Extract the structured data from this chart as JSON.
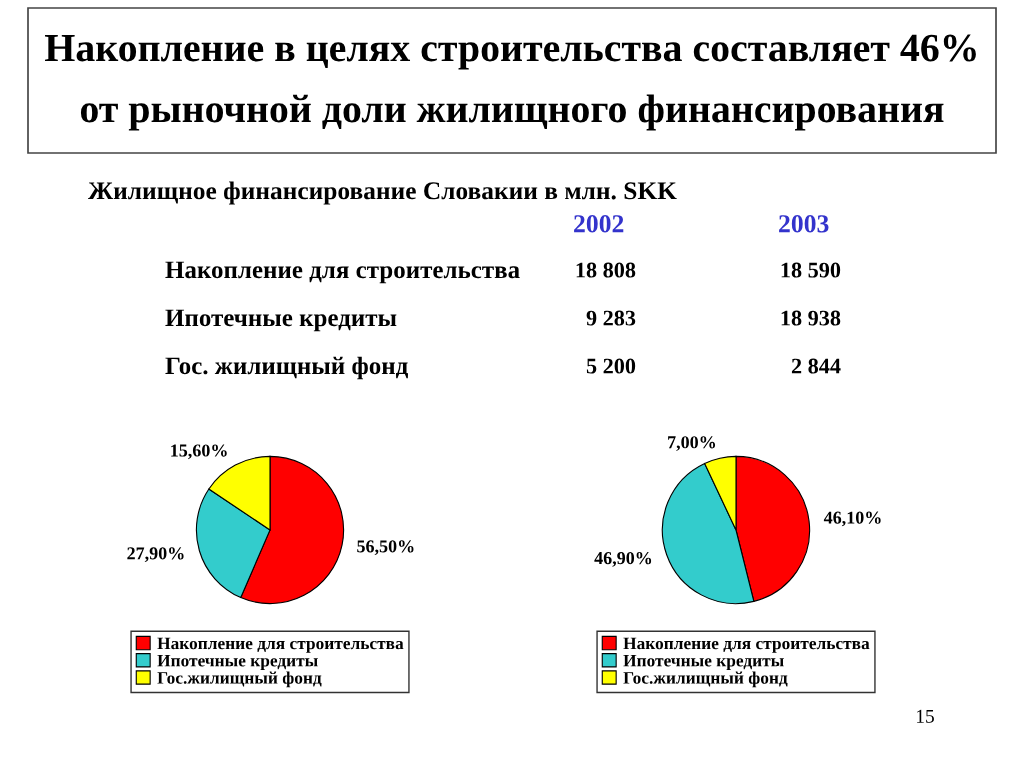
{
  "chart_data": [
    {
      "type": "other",
      "title": "Накопление в целях строительства составляет 46%\nот рыночной доли жилищного финансирования",
      "subtitle": "Жилищное финансирование Словакии в млн. SKK",
      "categories": [
        "Накопление для строительства",
        "Ипотечные кредиты",
        "Гос. жилищный фонд"
      ],
      "series": [
        {
          "name": "2002",
          "color": "#3333cc",
          "values": [
            18808,
            9283,
            5200
          ]
        },
        {
          "name": "2003",
          "color": "#3333cc",
          "values": [
            18590,
            18938,
            2844
          ]
        }
      ],
      "data_labels": true,
      "annotations": [
        "15"
      ]
    },
    {
      "type": "pie",
      "categories": [
        "Накопление для строительства",
        "Ипотечные кредиты",
        "Гос.жилищный фонд"
      ],
      "values": [
        56.5,
        27.9,
        15.6
      ],
      "colors": [
        "#ff0000",
        "#33cccc",
        "#ffff00"
      ],
      "value_labels": [
        "56,50%",
        "27,90%",
        "15,60%"
      ],
      "legend": "bottom"
    },
    {
      "type": "pie",
      "categories": [
        "Накопление для строительства",
        "Ипотечные кредиты",
        "Гос.жилищный фонд"
      ],
      "values": [
        46.1,
        46.9,
        7.0
      ],
      "colors": [
        "#ff0000",
        "#33cccc",
        "#ffff00"
      ],
      "value_labels": [
        "46,10%",
        "46,90%",
        "7,00%"
      ],
      "legend": "bottom"
    }
  ]
}
